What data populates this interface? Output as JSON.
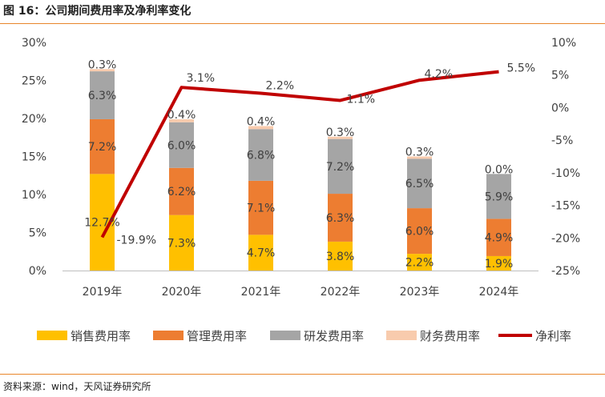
{
  "figure": {
    "title": "图 16：公司期间费用率及净利率变化",
    "source": "资料来源：wind，天风证券研究所"
  },
  "colors": {
    "accent": "#E8862B",
    "sales": "#FFC000",
    "admin": "#ED7D31",
    "rd": "#A5A5A5",
    "finance": "#F8CBAD",
    "net_margin": "#C00000"
  },
  "chart_data": {
    "type": "bar",
    "stacked": true,
    "categories": [
      "2019年",
      "2020年",
      "2021年",
      "2022年",
      "2023年",
      "2024年"
    ],
    "series": [
      {
        "name": "销售费用率",
        "kind": "bar",
        "axis": "left",
        "color": "#FFC000",
        "values": [
          12.7,
          7.3,
          4.7,
          3.8,
          2.2,
          1.9
        ],
        "labels": [
          "12.7%",
          "7.3%",
          "4.7%",
          "3.8%",
          "2.2%",
          "1.9%"
        ]
      },
      {
        "name": "管理费用率",
        "kind": "bar",
        "axis": "left",
        "color": "#ED7D31",
        "values": [
          7.2,
          6.2,
          7.1,
          6.3,
          6.0,
          4.9
        ],
        "labels": [
          "7.2%",
          "6.2%",
          "7.1%",
          "6.3%",
          "6.0%",
          "4.9%"
        ]
      },
      {
        "name": "研发费用率",
        "kind": "bar",
        "axis": "left",
        "color": "#A5A5A5",
        "values": [
          6.3,
          6.0,
          6.8,
          7.2,
          6.5,
          5.9
        ],
        "labels": [
          "6.3%",
          "6.0%",
          "6.8%",
          "7.2%",
          "6.5%",
          "5.9%"
        ]
      },
      {
        "name": "财务费用率",
        "kind": "bar",
        "axis": "left",
        "color": "#F8CBAD",
        "values": [
          0.3,
          0.4,
          0.4,
          0.3,
          0.3,
          0.0
        ],
        "labels": [
          "0.3%",
          "0.4%",
          "0.4%",
          "0.3%",
          "0.3%",
          "0.0%"
        ]
      },
      {
        "name": "净利率",
        "kind": "line",
        "axis": "right",
        "color": "#C00000",
        "values": [
          -19.9,
          3.1,
          2.2,
          1.1,
          4.2,
          5.5
        ],
        "labels": [
          "-19.9%",
          "3.1%",
          "2.2%",
          "1.1%",
          "4.2%",
          "5.5%"
        ]
      }
    ],
    "y_left": {
      "min": 0,
      "max": 30,
      "ticks": [
        "0%",
        "5%",
        "10%",
        "15%",
        "20%",
        "25%",
        "30%"
      ]
    },
    "y_right": {
      "min": -25,
      "max": 10,
      "ticks": [
        "-25%",
        "-20%",
        "-15%",
        "-10%",
        "-5%",
        "0%",
        "5%",
        "10%"
      ]
    },
    "grid": false,
    "legend_position": "bottom"
  }
}
